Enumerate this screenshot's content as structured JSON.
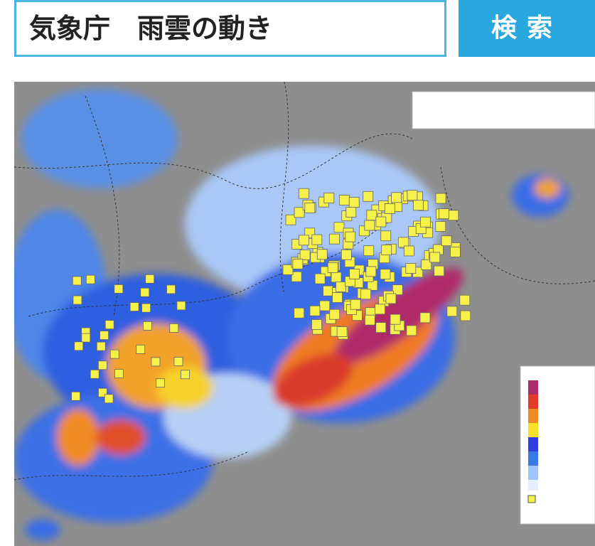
{
  "search": {
    "query": "気象庁　雨雲の動き",
    "button": "検索"
  }
}
